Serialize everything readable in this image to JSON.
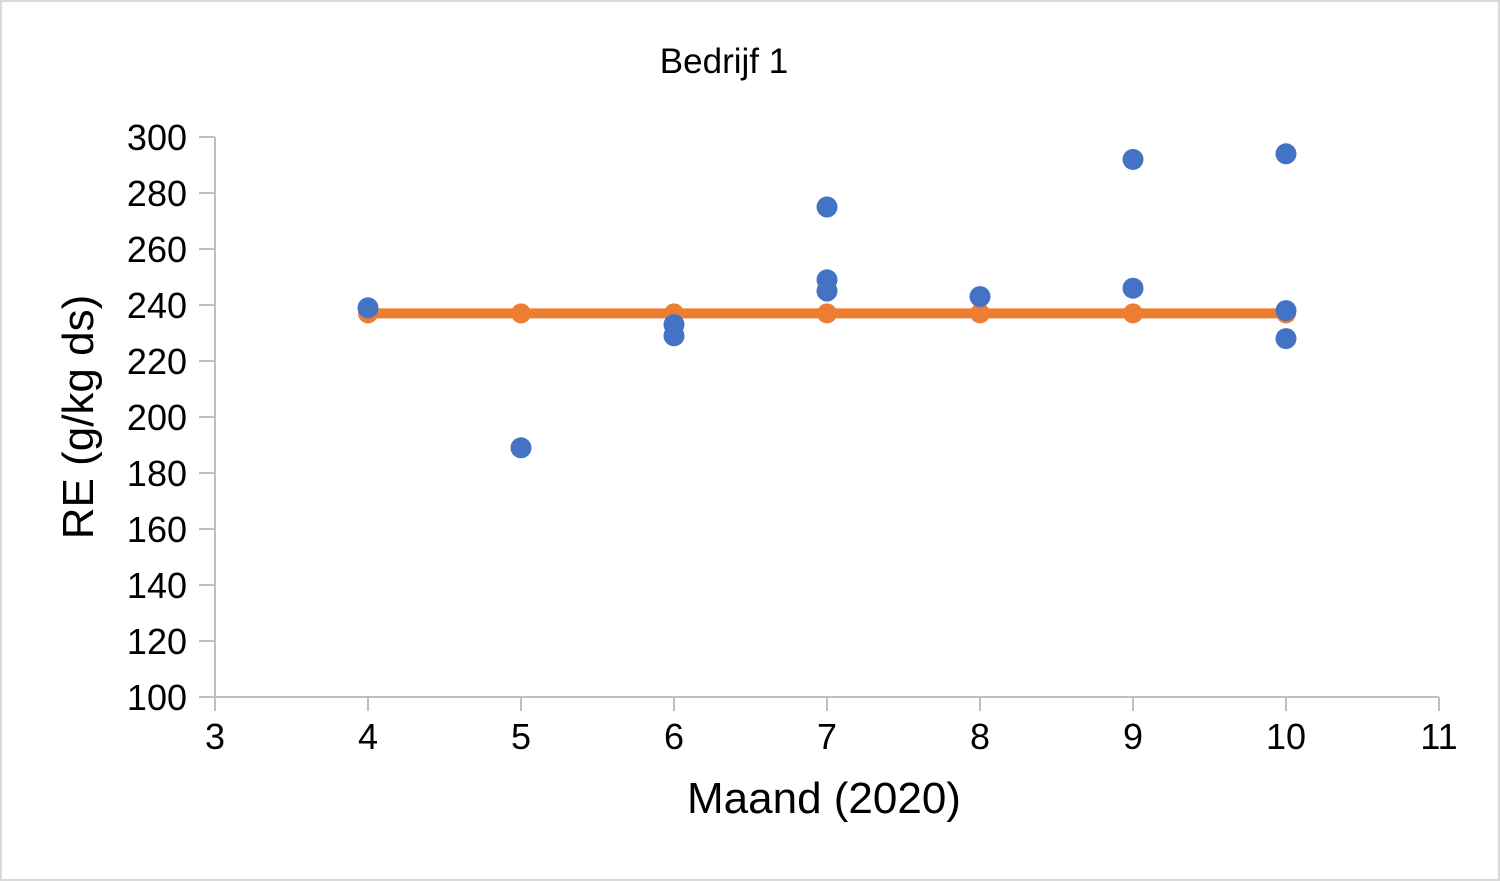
{
  "window": {
    "background_color": "#FFFFFF",
    "frame_border_color": "#D9D9D9"
  },
  "chart_data": {
    "type": "scatter",
    "title": "Bedrijf 1",
    "xlabel": "Maand (2020)",
    "ylabel": "RE (g/kg ds)",
    "xlim": [
      3,
      11
    ],
    "ylim": [
      100,
      300
    ],
    "x_ticks": [
      3,
      4,
      5,
      6,
      7,
      8,
      9,
      10,
      11
    ],
    "y_ticks": [
      100,
      120,
      140,
      160,
      180,
      200,
      220,
      240,
      260,
      280,
      300
    ],
    "grid": false,
    "legend_position": "none",
    "axis_color": "#BFBFBF",
    "text_color": "#000000",
    "series": [
      {
        "name": "blue-scatter-points",
        "type": "scatter",
        "color": "#4472C4",
        "marker": "circle",
        "points": [
          {
            "x": 4,
            "y": 239
          },
          {
            "x": 5,
            "y": 189
          },
          {
            "x": 6,
            "y": 233
          },
          {
            "x": 6,
            "y": 229
          },
          {
            "x": 7,
            "y": 275
          },
          {
            "x": 7,
            "y": 249
          },
          {
            "x": 7,
            "y": 245
          },
          {
            "x": 8,
            "y": 243
          },
          {
            "x": 9,
            "y": 292
          },
          {
            "x": 9,
            "y": 246
          },
          {
            "x": 10,
            "y": 294
          },
          {
            "x": 10,
            "y": 238
          },
          {
            "x": 10,
            "y": 228
          }
        ]
      },
      {
        "name": "orange-reference-line",
        "type": "line-with-markers",
        "color": "#ED7D31",
        "marker": "circle",
        "points": [
          {
            "x": 4,
            "y": 237
          },
          {
            "x": 5,
            "y": 237
          },
          {
            "x": 6,
            "y": 237
          },
          {
            "x": 7,
            "y": 237
          },
          {
            "x": 8,
            "y": 237
          },
          {
            "x": 9,
            "y": 237
          },
          {
            "x": 10,
            "y": 237
          }
        ]
      }
    ]
  }
}
